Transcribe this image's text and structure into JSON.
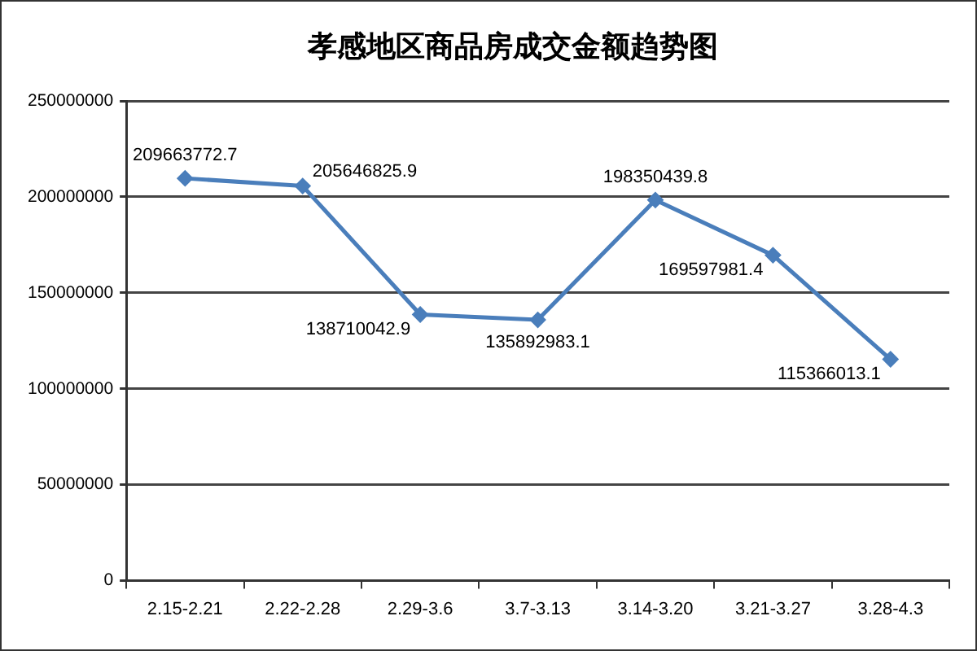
{
  "chart_data": {
    "type": "line",
    "title": "孝感地区商品房成交金额趋势图",
    "categories": [
      "2.15-2.21",
      "2.22-2.28",
      "2.29-3.6",
      "3.7-3.13",
      "3.14-3.20",
      "3.21-3.27",
      "3.28-4.3"
    ],
    "series": [
      {
        "color": "#4a7ebb",
        "values": [
          209663772.7,
          205646825.9,
          138710042.9,
          135892983.1,
          198350439.8,
          169597981.4,
          115366013.1
        ]
      }
    ],
    "ylim": [
      0,
      250000000
    ],
    "yticks": [
      0,
      50000000,
      100000000,
      150000000,
      200000000,
      250000000
    ],
    "grid": "y",
    "legend": false,
    "marker": "diamond",
    "line_style": "solid",
    "data_labels": true
  }
}
